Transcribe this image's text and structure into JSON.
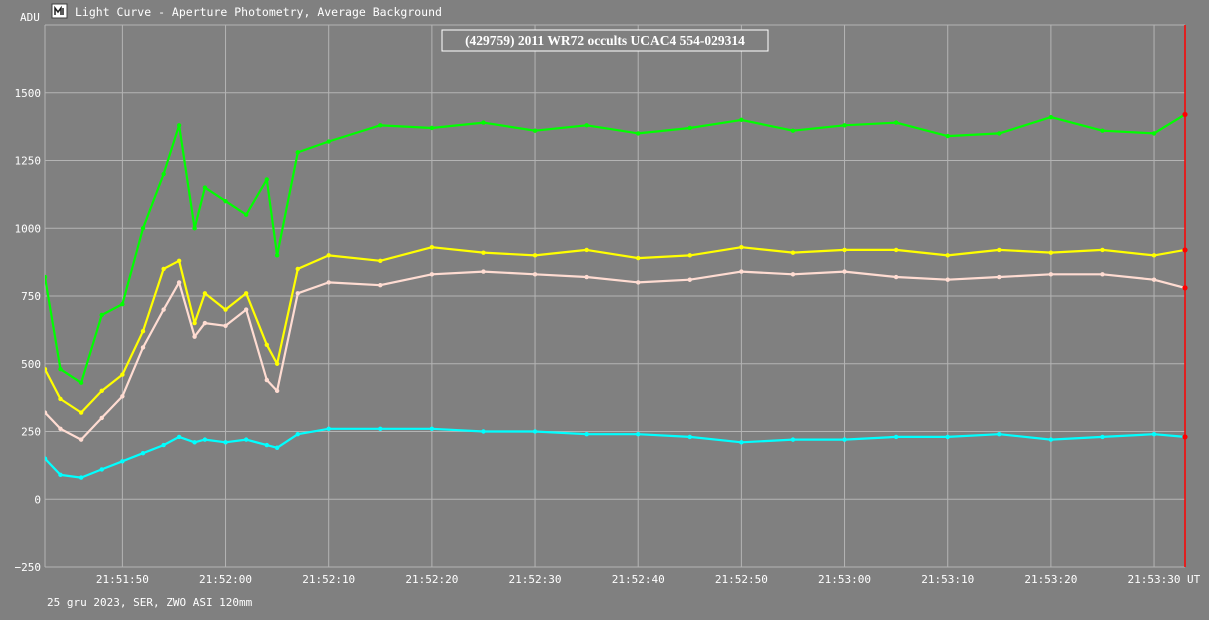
{
  "window": {
    "icon": "light-curve-app-icon",
    "title": "Light Curve - Aperture Photometry, Average Background"
  },
  "footer": {
    "info": "25 gru 2023, SER, ZWO ASI 120mm"
  },
  "colors": {
    "background": "#808080",
    "grid": "#b4b4b4",
    "text": "#ffffff",
    "cursor": "#ff0000",
    "series": [
      "#00ff00",
      "#ffff00",
      "#ffdcd2",
      "#00ffff"
    ]
  },
  "chart_data": {
    "type": "line",
    "title": "(429759) 2011 WR72 occults UCAC4 554-029314",
    "ylabel": "ADU",
    "xlabel": "UT",
    "ylim": [
      -250,
      1750
    ],
    "yticks": [
      -250,
      0,
      250,
      500,
      750,
      1000,
      1250,
      1500
    ],
    "xlim": [
      "21:51:42.5",
      "21:53:33"
    ],
    "xticks": [
      "21:51:50",
      "21:52:00",
      "21:52:10",
      "21:52:20",
      "21:52:30",
      "21:52:40",
      "21:52:50",
      "21:53:00",
      "21:53:10",
      "21:53:20",
      "21:53:30"
    ],
    "grid": true,
    "markers": "dots",
    "cursor_time": "21:53:33",
    "series": [
      {
        "color": "#00ff00",
        "x": [
          "21:51:42.5",
          "21:51:44",
          "21:51:46",
          "21:51:48",
          "21:51:50",
          "21:51:52",
          "21:51:54",
          "21:51:55.5",
          "21:51:57",
          "21:51:58",
          "21:52:00",
          "21:52:02",
          "21:52:04",
          "21:52:05",
          "21:52:07",
          "21:52:10",
          "21:52:15",
          "21:52:20",
          "21:52:25",
          "21:52:30",
          "21:52:35",
          "21:52:40",
          "21:52:45",
          "21:52:50",
          "21:52:55",
          "21:53:00",
          "21:53:05",
          "21:53:10",
          "21:53:15",
          "21:53:20",
          "21:53:25",
          "21:53:30",
          "21:53:33"
        ],
        "values": [
          820,
          480,
          430,
          680,
          720,
          1000,
          1200,
          1380,
          1000,
          1150,
          1100,
          1050,
          1180,
          900,
          1280,
          1320,
          1380,
          1370,
          1390,
          1360,
          1380,
          1350,
          1370,
          1400,
          1360,
          1380,
          1390,
          1340,
          1350,
          1410,
          1360,
          1350,
          1420
        ]
      },
      {
        "color": "#ffff00",
        "x": [
          "21:51:42.5",
          "21:51:44",
          "21:51:46",
          "21:51:48",
          "21:51:50",
          "21:51:52",
          "21:51:54",
          "21:51:55.5",
          "21:51:57",
          "21:51:58",
          "21:52:00",
          "21:52:02",
          "21:52:04",
          "21:52:05",
          "21:52:07",
          "21:52:10",
          "21:52:15",
          "21:52:20",
          "21:52:25",
          "21:52:30",
          "21:52:35",
          "21:52:40",
          "21:52:45",
          "21:52:50",
          "21:52:55",
          "21:53:00",
          "21:53:05",
          "21:53:10",
          "21:53:15",
          "21:53:20",
          "21:53:25",
          "21:53:30",
          "21:53:33"
        ],
        "values": [
          480,
          370,
          320,
          400,
          460,
          620,
          850,
          880,
          650,
          760,
          700,
          760,
          570,
          500,
          850,
          900,
          880,
          930,
          910,
          900,
          920,
          890,
          900,
          930,
          910,
          920,
          920,
          900,
          920,
          910,
          920,
          900,
          920
        ]
      },
      {
        "color": "#ffdcd2",
        "x": [
          "21:51:42.5",
          "21:51:44",
          "21:51:46",
          "21:51:48",
          "21:51:50",
          "21:51:52",
          "21:51:54",
          "21:51:55.5",
          "21:51:57",
          "21:51:58",
          "21:52:00",
          "21:52:02",
          "21:52:04",
          "21:52:05",
          "21:52:07",
          "21:52:10",
          "21:52:15",
          "21:52:20",
          "21:52:25",
          "21:52:30",
          "21:52:35",
          "21:52:40",
          "21:52:45",
          "21:52:50",
          "21:52:55",
          "21:53:00",
          "21:53:05",
          "21:53:10",
          "21:53:15",
          "21:53:20",
          "21:53:25",
          "21:53:30",
          "21:53:33"
        ],
        "values": [
          320,
          260,
          220,
          300,
          380,
          560,
          700,
          800,
          600,
          650,
          640,
          700,
          440,
          400,
          760,
          800,
          790,
          830,
          840,
          830,
          820,
          800,
          810,
          840,
          830,
          840,
          820,
          810,
          820,
          830,
          830,
          810,
          780
        ]
      },
      {
        "color": "#00ffff",
        "x": [
          "21:51:42.5",
          "21:51:44",
          "21:51:46",
          "21:51:48",
          "21:51:50",
          "21:51:52",
          "21:51:54",
          "21:51:55.5",
          "21:51:57",
          "21:51:58",
          "21:52:00",
          "21:52:02",
          "21:52:04",
          "21:52:05",
          "21:52:07",
          "21:52:10",
          "21:52:15",
          "21:52:20",
          "21:52:25",
          "21:52:30",
          "21:52:35",
          "21:52:40",
          "21:52:45",
          "21:52:50",
          "21:52:55",
          "21:53:00",
          "21:53:05",
          "21:53:10",
          "21:53:15",
          "21:53:20",
          "21:53:25",
          "21:53:30",
          "21:53:33"
        ],
        "values": [
          150,
          90,
          80,
          110,
          140,
          170,
          200,
          230,
          210,
          220,
          210,
          220,
          200,
          190,
          240,
          260,
          260,
          260,
          250,
          250,
          240,
          240,
          230,
          210,
          220,
          220,
          230,
          230,
          240,
          220,
          230,
          240,
          230
        ]
      }
    ]
  }
}
